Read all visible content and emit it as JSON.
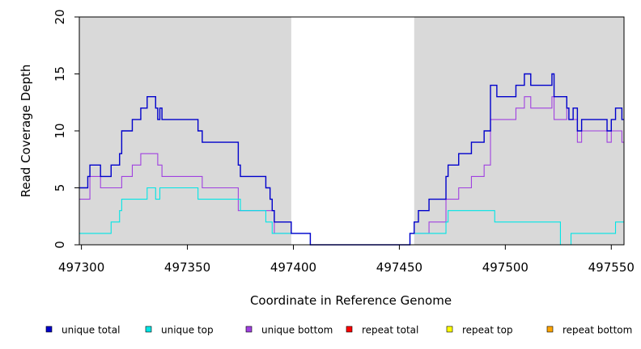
{
  "chart_data": {
    "type": "line",
    "xlabel": "Coordinate in Reference Genome",
    "ylabel": "Read Coverage Depth",
    "xlim": [
      497299,
      497556
    ],
    "ylim": [
      0,
      20
    ],
    "xticks": [
      497300,
      497350,
      497400,
      497450,
      497500,
      497550
    ],
    "yticks": [
      0,
      5,
      10,
      15,
      20
    ],
    "shaded_regions": [
      [
        497299,
        497399
      ],
      [
        497457,
        497556
      ]
    ],
    "shade_color": "#d9d9d9",
    "legend_position": "bottom",
    "series": [
      {
        "name": "unique total",
        "color": "#0000cc",
        "points": [
          [
            497299,
            5
          ],
          [
            497303,
            6
          ],
          [
            497304,
            7
          ],
          [
            497309,
            6
          ],
          [
            497314,
            7
          ],
          [
            497318,
            8
          ],
          [
            497319,
            10
          ],
          [
            497324,
            11
          ],
          [
            497328,
            12
          ],
          [
            497331,
            13
          ],
          [
            497335,
            12
          ],
          [
            497336,
            11
          ],
          [
            497337,
            12
          ],
          [
            497338,
            11
          ],
          [
            497355,
            10
          ],
          [
            497357,
            9
          ],
          [
            497374,
            7
          ],
          [
            497375,
            6
          ],
          [
            497387,
            5
          ],
          [
            497389,
            4
          ],
          [
            497390,
            3
          ],
          [
            497391,
            2
          ],
          [
            497399,
            1
          ],
          [
            497408,
            0
          ],
          [
            497455,
            1
          ],
          [
            497457,
            2
          ],
          [
            497459,
            3
          ],
          [
            497464,
            4
          ],
          [
            497472,
            6
          ],
          [
            497473,
            7
          ],
          [
            497478,
            8
          ],
          [
            497484,
            9
          ],
          [
            497490,
            10
          ],
          [
            497493,
            14
          ],
          [
            497496,
            13
          ],
          [
            497505,
            14
          ],
          [
            497509,
            15
          ],
          [
            497512,
            14
          ],
          [
            497522,
            15
          ],
          [
            497523,
            13
          ],
          [
            497529,
            12
          ],
          [
            497530,
            11
          ],
          [
            497532,
            12
          ],
          [
            497534,
            10
          ],
          [
            497536,
            11
          ],
          [
            497548,
            10
          ],
          [
            497550,
            11
          ],
          [
            497552,
            12
          ],
          [
            497555,
            11
          ],
          [
            497556,
            11
          ]
        ]
      },
      {
        "name": "unique top",
        "color": "#00e5e5",
        "points": [
          [
            497299,
            1
          ],
          [
            497314,
            2
          ],
          [
            497318,
            3
          ],
          [
            497319,
            4
          ],
          [
            497331,
            5
          ],
          [
            497335,
            4
          ],
          [
            497337,
            5
          ],
          [
            497355,
            4
          ],
          [
            497375,
            3
          ],
          [
            497387,
            2
          ],
          [
            497390,
            1
          ],
          [
            497399,
            1
          ],
          [
            497408,
            0
          ],
          [
            497455,
            1
          ],
          [
            497457,
            1
          ],
          [
            497472,
            2
          ],
          [
            497473,
            3
          ],
          [
            497495,
            2
          ],
          [
            497526,
            0
          ],
          [
            497531,
            1
          ],
          [
            497552,
            2
          ],
          [
            497556,
            2
          ]
        ]
      },
      {
        "name": "unique bottom",
        "color": "#a040e0",
        "points": [
          [
            497299,
            4
          ],
          [
            497304,
            6
          ],
          [
            497309,
            5
          ],
          [
            497319,
            6
          ],
          [
            497324,
            7
          ],
          [
            497328,
            8
          ],
          [
            497336,
            7
          ],
          [
            497338,
            6
          ],
          [
            497357,
            5
          ],
          [
            497374,
            3
          ],
          [
            497391,
            1
          ],
          [
            497408,
            0
          ],
          [
            497455,
            1
          ],
          [
            497457,
            1
          ],
          [
            497464,
            2
          ],
          [
            497472,
            4
          ],
          [
            497478,
            5
          ],
          [
            497484,
            6
          ],
          [
            497490,
            7
          ],
          [
            497493,
            11
          ],
          [
            497505,
            12
          ],
          [
            497509,
            13
          ],
          [
            497512,
            12
          ],
          [
            497522,
            13
          ],
          [
            497523,
            11
          ],
          [
            497529,
            12
          ],
          [
            497530,
            11
          ],
          [
            497534,
            9
          ],
          [
            497536,
            10
          ],
          [
            497548,
            9
          ],
          [
            497550,
            10
          ],
          [
            497555,
            9
          ],
          [
            497556,
            9
          ]
        ]
      },
      {
        "name": "repeat total",
        "color": "#ff0000",
        "points": [
          [
            497299,
            0
          ],
          [
            497556,
            0
          ]
        ]
      },
      {
        "name": "repeat top",
        "color": "#ffff00",
        "points": [
          [
            497299,
            0
          ],
          [
            497556,
            0
          ]
        ]
      },
      {
        "name": "repeat bottom",
        "color": "#ffa500",
        "points": [
          [
            497299,
            0
          ],
          [
            497556,
            0
          ]
        ]
      }
    ]
  }
}
